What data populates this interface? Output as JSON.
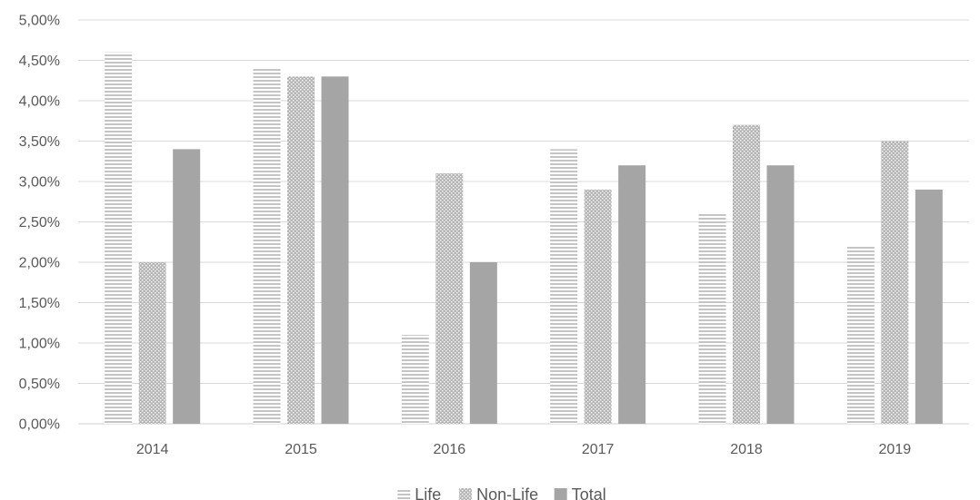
{
  "chart_data": {
    "type": "bar",
    "categories": [
      "2014",
      "2015",
      "2016",
      "2017",
      "2018",
      "2019"
    ],
    "series": [
      {
        "name": "Life",
        "values": [
          4.6,
          4.4,
          1.1,
          3.4,
          2.6,
          2.2
        ],
        "pattern": "horizontal-stripes",
        "color": "#bfbfbf"
      },
      {
        "name": "Non-Life",
        "values": [
          2.0,
          4.3,
          3.1,
          2.9,
          3.7,
          3.5
        ],
        "pattern": "dotted-checker",
        "color": "#a6a6a6"
      },
      {
        "name": "Total",
        "values": [
          3.4,
          4.3,
          2.0,
          3.2,
          3.2,
          2.9
        ],
        "pattern": "solid",
        "color": "#a5a5a5"
      }
    ],
    "y_ticks": [
      "0,00%",
      "0,50%",
      "1,00%",
      "1,50%",
      "2,00%",
      "2,50%",
      "3,00%",
      "3,50%",
      "4,00%",
      "4,50%",
      "5,00%"
    ],
    "ylim": [
      0,
      5
    ],
    "unit": "%",
    "grid": true,
    "legend_position": "bottom",
    "title": "",
    "xlabel": "",
    "ylabel": ""
  }
}
